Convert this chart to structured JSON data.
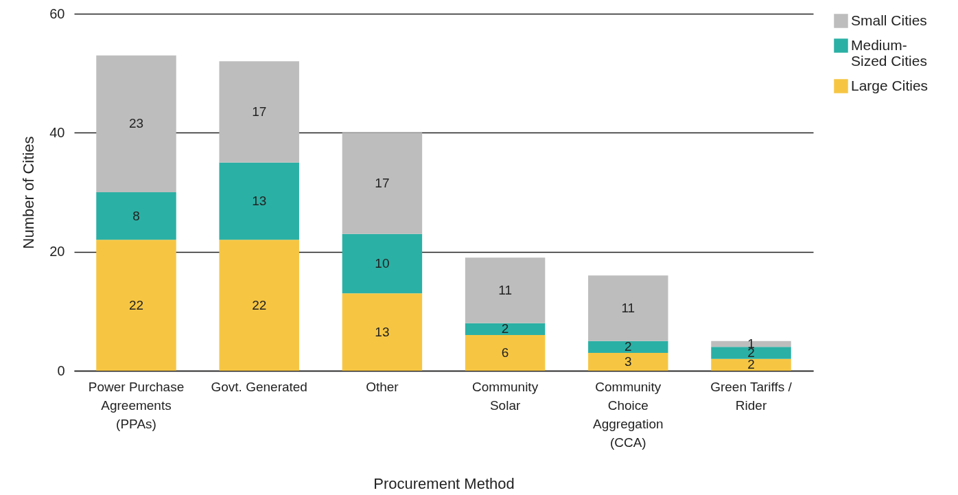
{
  "chart_data": {
    "type": "bar",
    "stacked": true,
    "xlabel": "Procurement Method",
    "ylabel": "Number of Cities",
    "categories": [
      "Power Purchase\nAgreements\n(PPAs)",
      "Govt. Generated",
      "Other",
      "Community\nSolar",
      "Community\nChoice\nAggregation\n(CCA)",
      "Green Tariffs /\nRider"
    ],
    "series": [
      {
        "name": "Large Cities",
        "color": "#f6c643",
        "values": [
          22,
          22,
          13,
          6,
          3,
          2
        ]
      },
      {
        "name": "Medium-\nSized Cities",
        "color": "#2bb0a5",
        "values": [
          8,
          13,
          10,
          2,
          2,
          2
        ]
      },
      {
        "name": "Small Cities",
        "color": "#bdbdbd",
        "values": [
          23,
          17,
          17,
          11,
          11,
          1
        ]
      }
    ],
    "ylim": [
      0,
      60
    ],
    "yticks": [
      0,
      20,
      40,
      60
    ],
    "grid": "y",
    "legend": "top right",
    "data_labels": true
  }
}
